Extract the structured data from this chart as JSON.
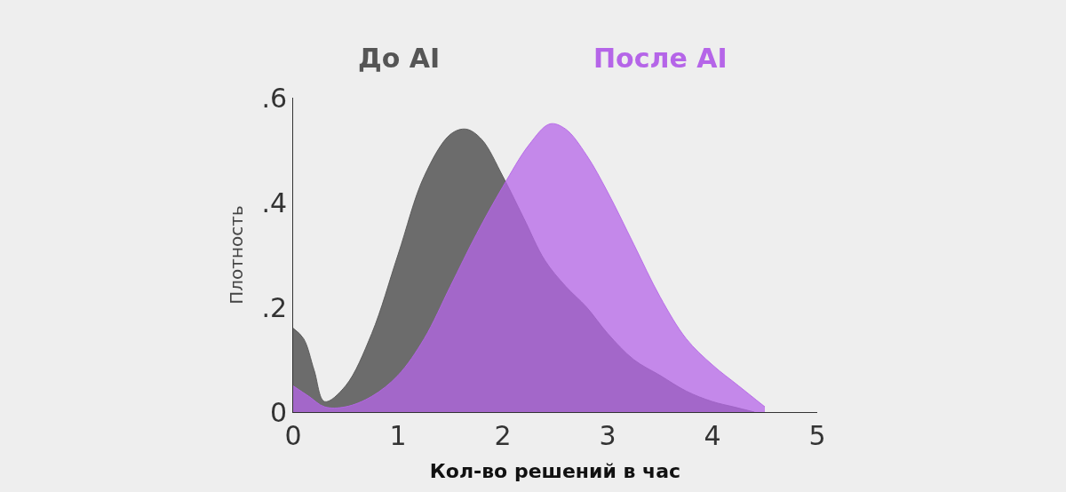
{
  "chart_data": {
    "type": "area",
    "xlabel": "Кол-во решений в час",
    "ylabel": "Плотность",
    "xlim": [
      0,
      5
    ],
    "xticks": [
      0,
      1,
      2,
      3,
      4,
      5
    ],
    "ylim": [
      0,
      0.6
    ],
    "yticks": [
      {
        "value": 0,
        "label": "0"
      },
      {
        "value": 0.2,
        "label": ".2"
      },
      {
        "value": 0.4,
        "label": ".4"
      },
      {
        "value": 0.6,
        "label": ".6"
      }
    ],
    "grid": false,
    "legend": false,
    "series": [
      {
        "name": "До AI",
        "color": "#555555",
        "x": [
          0,
          0.1,
          0.2,
          0.3,
          0.5,
          0.75,
          1,
          1.25,
          1.5,
          1.65,
          1.8,
          2,
          2.2,
          2.4,
          2.6,
          2.8,
          3,
          3.25,
          3.5,
          3.75,
          4,
          4.2,
          4.4
        ],
        "values": [
          0.16,
          0.14,
          0.08,
          0.02,
          0.05,
          0.15,
          0.3,
          0.45,
          0.53,
          0.54,
          0.52,
          0.45,
          0.37,
          0.29,
          0.24,
          0.2,
          0.15,
          0.1,
          0.07,
          0.04,
          0.02,
          0.01,
          0
        ]
      },
      {
        "name": "После AI",
        "color": "#b565e8",
        "x": [
          0,
          0.15,
          0.3,
          0.5,
          0.75,
          1,
          1.25,
          1.5,
          1.75,
          2,
          2.25,
          2.45,
          2.6,
          2.8,
          3,
          3.25,
          3.5,
          3.75,
          4,
          4.25,
          4.5
        ],
        "values": [
          0.05,
          0.03,
          0.01,
          0.01,
          0.03,
          0.07,
          0.14,
          0.24,
          0.34,
          0.43,
          0.51,
          0.55,
          0.54,
          0.49,
          0.42,
          0.32,
          0.22,
          0.14,
          0.09,
          0.05,
          0.01
        ]
      }
    ]
  }
}
